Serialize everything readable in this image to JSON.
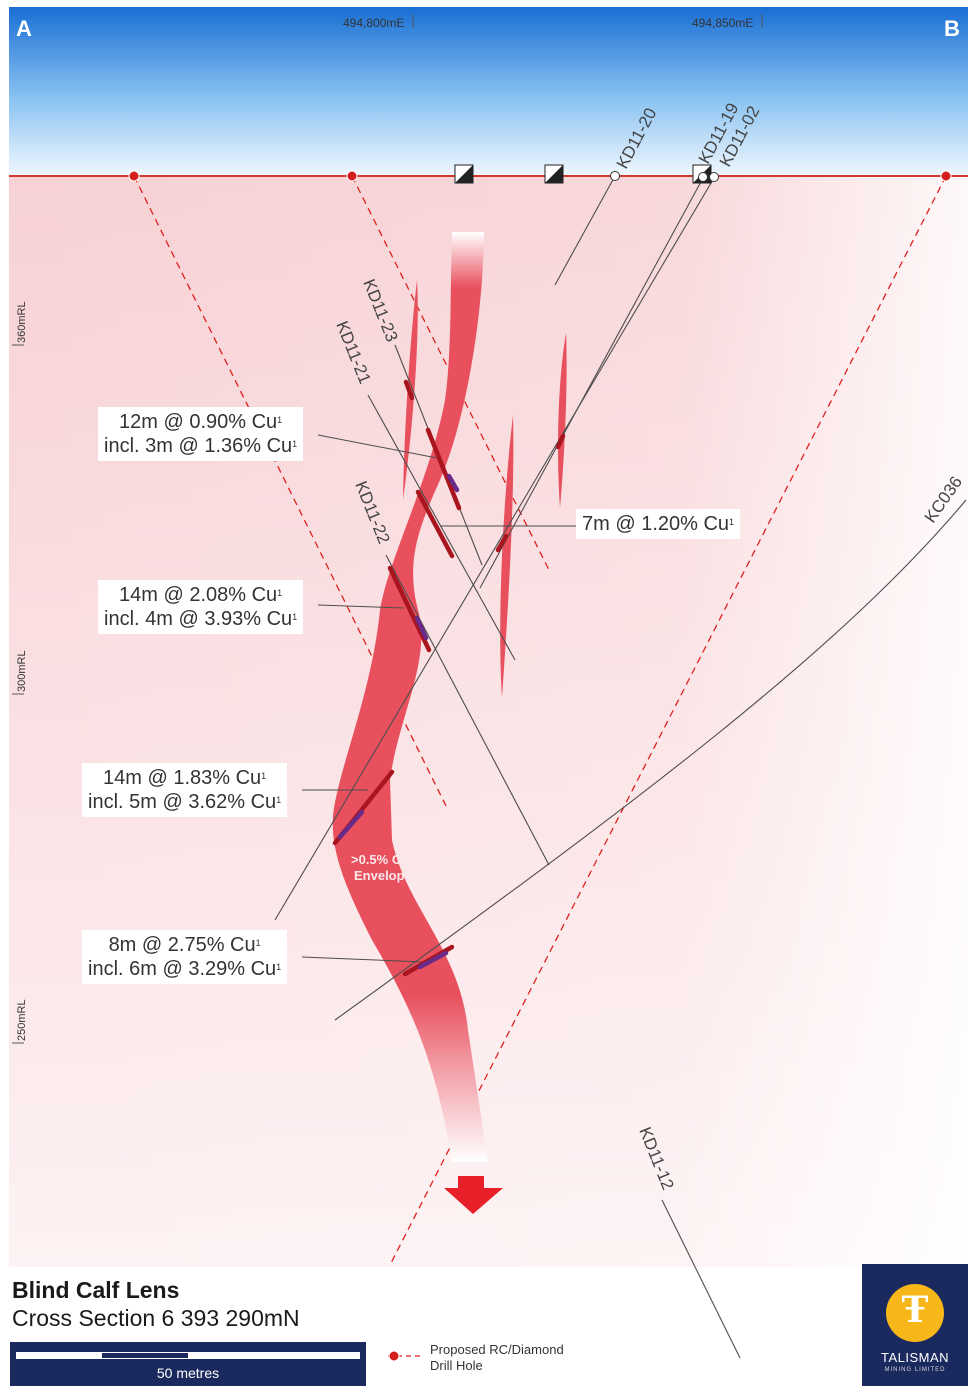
{
  "section": {
    "corner_left": "A",
    "corner_right": "B",
    "eastings": [
      "494,800mE",
      "494,850mE"
    ],
    "rl_labels": [
      "360mRL",
      "300mRL",
      "250mRL"
    ]
  },
  "holes": {
    "kd11_20": "KD11-20",
    "kd11_19": "KD11-19",
    "kd11_02": "KD11-02",
    "kd11_23": "KD11-23",
    "kd11_21": "KD11-21",
    "kd11_22": "KD11-22",
    "kc036": "KC036",
    "kd11_12": "KD11-12"
  },
  "intercepts": [
    {
      "line1": "12m @ 0.90% Cu",
      "line2": "incl. 3m @ 1.36% Cu",
      "note": "1"
    },
    {
      "line1": "7m @ 1.20% Cu",
      "note": "1"
    },
    {
      "line1": "14m @ 2.08% Cu",
      "line2": "incl. 4m @ 3.93% Cu",
      "note": "1"
    },
    {
      "line1": "14m @ 1.83% Cu",
      "line2": "incl. 5m @ 3.62% Cu",
      "note": "1"
    },
    {
      "line1": "8m @ 2.75% Cu",
      "line2": "incl. 6m @ 3.29% Cu",
      "note": "1"
    }
  ],
  "envelope": {
    "line1": ">0.5% Cu",
    "line2": "Envelope"
  },
  "title": {
    "main": "Blind Calf Lens",
    "sub": "Cross Section 6 393 290mN"
  },
  "scale": {
    "label": "50 metres"
  },
  "legend": {
    "line1": "Proposed RC/Diamond",
    "line2": "Drill Hole"
  },
  "logo": {
    "name": "TALISMAN",
    "sub": "MINING LIMITED"
  },
  "colors": {
    "sky_top": "#1a6fd4",
    "ground": "#f7d4d6",
    "lens": "#e8505e",
    "intercept": "#a8151f",
    "high_grade": "#6a2a8a",
    "proposed": "#e02020",
    "navy": "#1b2a5e",
    "logo_gold": "#f7b719"
  }
}
